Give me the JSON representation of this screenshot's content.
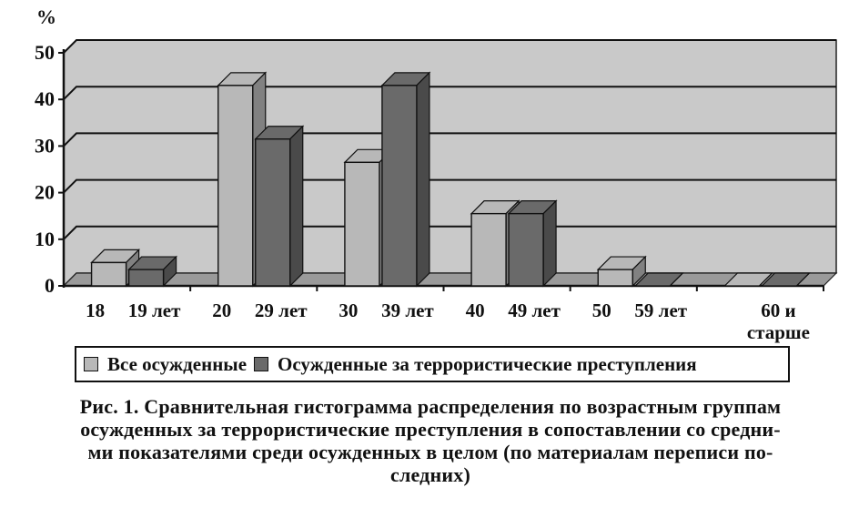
{
  "chart_data": {
    "type": "bar",
    "unit_label": "%",
    "categories": [
      "18 19 лет",
      "20 29 лет",
      "30 39 лет",
      "40 49 лет",
      "50 59 лет",
      "60 и старше"
    ],
    "category_labels": [
      {
        "lines": [
          "18",
          "19 лет"
        ]
      },
      {
        "lines": [
          "20",
          "29 лет"
        ]
      },
      {
        "lines": [
          "30",
          "39 лет"
        ]
      },
      {
        "lines": [
          "40",
          "49 лет"
        ]
      },
      {
        "lines": [
          "50",
          "59 лет"
        ]
      },
      {
        "lines": [
          "60 и",
          "старше"
        ]
      }
    ],
    "series": [
      {
        "name": "Все осужденные",
        "color": "#b8b8b8",
        "values": [
          5,
          43,
          26.5,
          15.5,
          3.5,
          0
        ]
      },
      {
        "name": "Осужденные за террористические преступления",
        "color": "#6a6a6a",
        "values": [
          3.5,
          31.5,
          43,
          15.5,
          0,
          0
        ]
      }
    ],
    "ylim": [
      0,
      50
    ],
    "yticks": [
      "0",
      "10",
      "20",
      "30",
      "40",
      "50"
    ],
    "grid": true,
    "three_d": true,
    "plot_background": "#c9c9c9",
    "legend_position": "bottom"
  },
  "caption": [
    "Рис. 1. Сравнительная гистограмма распределения по возрастным группам",
    "осужденных за террористические преступления в сопоставлении со средни-",
    "ми показателями среди осужденных в целом (по материалам переписи по-",
    "следних)"
  ]
}
